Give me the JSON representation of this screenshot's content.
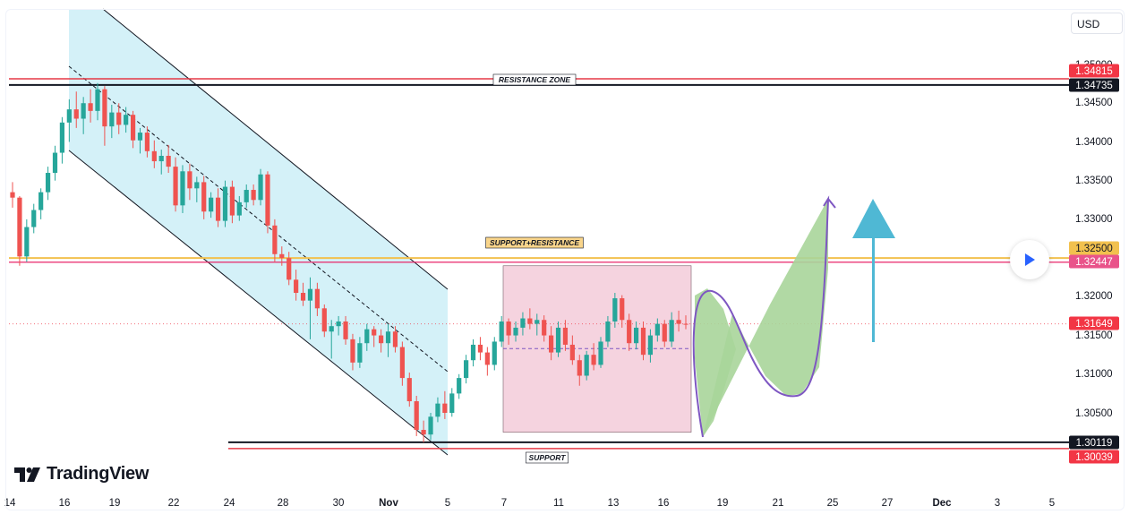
{
  "currency": "USD",
  "brand": "TradingView",
  "colors": {
    "up": "#26a69a",
    "down": "#ef5350",
    "channel_fill": "#cdeef7",
    "range_fill": "#f5cfdc",
    "resistance_red": "#e53946",
    "support_black": "#131722",
    "sr_yellow": "#f2c14e",
    "sr_pink": "#e91e63",
    "projection_fill": "#a8d59a",
    "projection_line": "#7e57c2",
    "arrow_blue": "#4fb8d4",
    "price_red": "#f23645"
  },
  "chart_data": {
    "type": "candlestick",
    "price_axis": {
      "ticks": [
        "1.35000",
        "1.34500",
        "1.34000",
        "1.33500",
        "1.33000",
        "1.32000",
        "1.31500",
        "1.31000",
        "1.30500"
      ],
      "range": [
        1.2985,
        1.354
      ]
    },
    "time_axis": {
      "labels": [
        "14",
        "16",
        "19",
        "22",
        "24",
        "28",
        "30",
        "Nov",
        "5",
        "7",
        "11",
        "13",
        "16",
        "19",
        "21",
        "25",
        "27",
        "Dec",
        "3",
        "5"
      ]
    },
    "price_labels": [
      {
        "value": "1.34815",
        "style": "red"
      },
      {
        "value": "1.34735",
        "style": "black"
      },
      {
        "value": "1.32500",
        "style": "yellow"
      },
      {
        "value": "1.32447",
        "style": "pink"
      },
      {
        "value": "1.31649",
        "style": "red"
      },
      {
        "value": "1.30119",
        "style": "black"
      },
      {
        "value": "1.30039",
        "style": "red"
      }
    ],
    "levels": [
      {
        "name": "RESISTANCE ZONE",
        "values": [
          1.34815,
          1.34735
        ]
      },
      {
        "name": "SUPPORT+RESISTANCE",
        "values": [
          1.325,
          1.32447
        ]
      },
      {
        "name": "SUPPORT",
        "values": [
          1.30119,
          1.30039
        ]
      }
    ],
    "current_price": 1.31649,
    "range_box": {
      "high": 1.324,
      "low": 1.3025,
      "mid": 1.3133
    },
    "candles": [
      [
        1.3335,
        1.3348,
        1.3315,
        1.3328
      ],
      [
        1.3328,
        1.333,
        1.324,
        1.3252
      ],
      [
        1.3252,
        1.33,
        1.3245,
        1.329
      ],
      [
        1.329,
        1.332,
        1.3282,
        1.3312
      ],
      [
        1.3312,
        1.334,
        1.33,
        1.3335
      ],
      [
        1.3335,
        1.3368,
        1.3325,
        1.336
      ],
      [
        1.336,
        1.3395,
        1.335,
        1.3386
      ],
      [
        1.3386,
        1.3432,
        1.3372,
        1.3425
      ],
      [
        1.3425,
        1.3455,
        1.34,
        1.3442
      ],
      [
        1.3442,
        1.3465,
        1.3418,
        1.343
      ],
      [
        1.343,
        1.3458,
        1.341,
        1.345
      ],
      [
        1.345,
        1.3468,
        1.3425,
        1.344
      ],
      [
        1.344,
        1.3476,
        1.3428,
        1.3468
      ],
      [
        1.3468,
        1.3472,
        1.3395,
        1.342
      ],
      [
        1.342,
        1.3448,
        1.3405,
        1.3438
      ],
      [
        1.3438,
        1.345,
        1.341,
        1.3422
      ],
      [
        1.3422,
        1.3445,
        1.3412,
        1.3435
      ],
      [
        1.3435,
        1.344,
        1.3392,
        1.3402
      ],
      [
        1.3402,
        1.3418,
        1.3385,
        1.3412
      ],
      [
        1.3412,
        1.342,
        1.338,
        1.3388
      ],
      [
        1.3388,
        1.3402,
        1.3366,
        1.3375
      ],
      [
        1.3375,
        1.339,
        1.3358,
        1.3382
      ],
      [
        1.3382,
        1.3396,
        1.336,
        1.3368
      ],
      [
        1.3368,
        1.338,
        1.331,
        1.3318
      ],
      [
        1.3318,
        1.337,
        1.3308,
        1.3362
      ],
      [
        1.3362,
        1.3372,
        1.3325,
        1.334
      ],
      [
        1.334,
        1.3355,
        1.3322,
        1.3348
      ],
      [
        1.3348,
        1.3356,
        1.33,
        1.331
      ],
      [
        1.331,
        1.3335,
        1.3302,
        1.3328
      ],
      [
        1.3328,
        1.334,
        1.329,
        1.3298
      ],
      [
        1.3298,
        1.335,
        1.329,
        1.3342
      ],
      [
        1.3342,
        1.335,
        1.3295,
        1.3305
      ],
      [
        1.3305,
        1.333,
        1.3298,
        1.3322
      ],
      [
        1.3322,
        1.3345,
        1.3315,
        1.3338
      ],
      [
        1.3338,
        1.3345,
        1.3318,
        1.3325
      ],
      [
        1.3325,
        1.3365,
        1.3318,
        1.3358
      ],
      [
        1.3358,
        1.3362,
        1.3282,
        1.3292
      ],
      [
        1.3292,
        1.33,
        1.3245,
        1.3255
      ],
      [
        1.3255,
        1.3265,
        1.324,
        1.325
      ],
      [
        1.325,
        1.3258,
        1.3215,
        1.3222
      ],
      [
        1.3222,
        1.3235,
        1.3195,
        1.3205
      ],
      [
        1.3205,
        1.3218,
        1.3188,
        1.3195
      ],
      [
        1.3195,
        1.3225,
        1.3145,
        1.321
      ],
      [
        1.321,
        1.3218,
        1.3175,
        1.3185
      ],
      [
        1.3185,
        1.319,
        1.3148,
        1.3155
      ],
      [
        1.3155,
        1.317,
        1.312,
        1.3162
      ],
      [
        1.3162,
        1.3175,
        1.315,
        1.3168
      ],
      [
        1.3168,
        1.3175,
        1.3138,
        1.3145
      ],
      [
        1.3145,
        1.3152,
        1.3105,
        1.3115
      ],
      [
        1.3115,
        1.3148,
        1.3108,
        1.314
      ],
      [
        1.314,
        1.3165,
        1.313,
        1.3158
      ],
      [
        1.3158,
        1.3162,
        1.3135,
        1.315
      ],
      [
        1.315,
        1.3158,
        1.3128,
        1.314
      ],
      [
        1.314,
        1.3165,
        1.3122,
        1.3155
      ],
      [
        1.3155,
        1.3162,
        1.3128,
        1.3135
      ],
      [
        1.3135,
        1.3142,
        1.3085,
        1.3095
      ],
      [
        1.3095,
        1.3102,
        1.3058,
        1.3065
      ],
      [
        1.3065,
        1.3072,
        1.302,
        1.3028
      ],
      [
        1.3028,
        1.304,
        1.3012,
        1.3022
      ],
      [
        1.3022,
        1.305,
        1.3015,
        1.3045
      ],
      [
        1.3045,
        1.307,
        1.3038,
        1.3062
      ],
      [
        1.3062,
        1.3078,
        1.3042,
        1.305
      ],
      [
        1.305,
        1.3082,
        1.3045,
        1.3075
      ],
      [
        1.3075,
        1.31,
        1.3068,
        1.3095
      ],
      [
        1.3095,
        1.3125,
        1.3088,
        1.3118
      ],
      [
        1.3118,
        1.3145,
        1.311,
        1.3138
      ],
      [
        1.3138,
        1.3148,
        1.3118,
        1.3128
      ],
      [
        1.3128,
        1.3135,
        1.3098,
        1.3112
      ],
      [
        1.3112,
        1.3148,
        1.3105,
        1.3142
      ],
      [
        1.3142,
        1.3175,
        1.3135,
        1.3168
      ],
      [
        1.3168,
        1.3172,
        1.3138,
        1.315
      ],
      [
        1.315,
        1.3168,
        1.3142,
        1.316
      ],
      [
        1.316,
        1.318,
        1.315,
        1.3172
      ],
      [
        1.3172,
        1.3185,
        1.3158,
        1.3165
      ],
      [
        1.3165,
        1.3178,
        1.315,
        1.317
      ],
      [
        1.317,
        1.3176,
        1.3142,
        1.315
      ],
      [
        1.315,
        1.3162,
        1.3118,
        1.3128
      ],
      [
        1.3128,
        1.3168,
        1.3122,
        1.316
      ],
      [
        1.316,
        1.317,
        1.313,
        1.3138
      ],
      [
        1.3138,
        1.315,
        1.3112,
        1.3118
      ],
      [
        1.3118,
        1.3125,
        1.3085,
        1.3098
      ],
      [
        1.3098,
        1.313,
        1.3092,
        1.3125
      ],
      [
        1.3125,
        1.314,
        1.3105,
        1.3112
      ],
      [
        1.3112,
        1.3148,
        1.3108,
        1.3142
      ],
      [
        1.3142,
        1.3175,
        1.3135,
        1.3168
      ],
      [
        1.3168,
        1.3205,
        1.316,
        1.3198
      ],
      [
        1.3198,
        1.3202,
        1.316,
        1.317
      ],
      [
        1.317,
        1.3178,
        1.313,
        1.314
      ],
      [
        1.314,
        1.3168,
        1.3132,
        1.316
      ],
      [
        1.316,
        1.3168,
        1.3118,
        1.3125
      ],
      [
        1.3125,
        1.3158,
        1.3115,
        1.315
      ],
      [
        1.315,
        1.3172,
        1.3142,
        1.3165
      ],
      [
        1.3165,
        1.317,
        1.3135,
        1.3142
      ],
      [
        1.3142,
        1.318,
        1.3135,
        1.317
      ],
      [
        1.317,
        1.3182,
        1.3155,
        1.3165
      ],
      [
        1.3165,
        1.3176,
        1.3158,
        1.3164
      ]
    ]
  },
  "annotations": {
    "resistance": "RESISTANCE ZONE",
    "sr": "SUPPORT+RESISTANCE",
    "support": "SUPPORT"
  }
}
